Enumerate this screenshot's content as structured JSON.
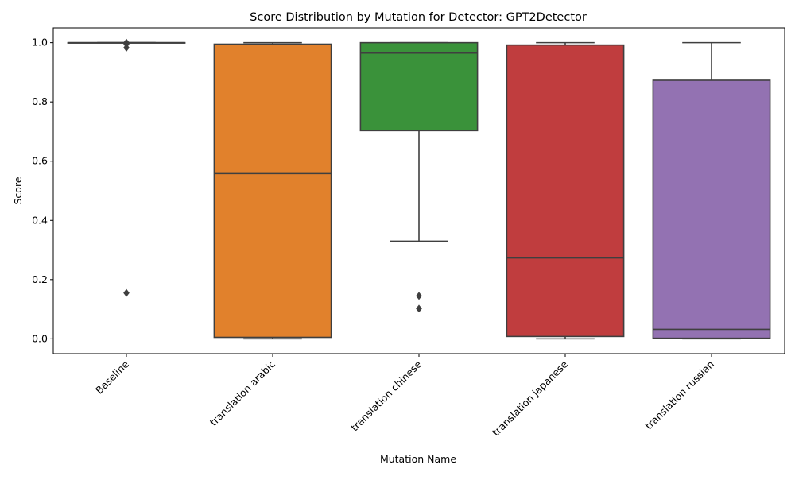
{
  "chart_data": {
    "type": "box",
    "title": "Score Distribution by Mutation for Detector: GPT2Detector",
    "xlabel": "Mutation Name",
    "ylabel": "Score",
    "ylim": [
      -0.05,
      1.05
    ],
    "yticks": [
      0.0,
      0.2,
      0.4,
      0.6,
      0.8,
      1.0
    ],
    "ytick_labels": [
      "0.0",
      "0.2",
      "0.4",
      "0.6",
      "0.8",
      "1.0"
    ],
    "grid": false,
    "legend": "none",
    "categories": [
      "Baseline",
      "translation arabic",
      "translation chinese",
      "translation japanese",
      "translation russian"
    ],
    "boxes": [
      {
        "category": "Baseline",
        "color": "#3a75af",
        "whisker_low": 1.0,
        "q1": 1.0,
        "median": 1.0,
        "q3": 1.0,
        "whisker_high": 1.0,
        "outliers": [
          1.0,
          0.995,
          0.983,
          0.155
        ]
      },
      {
        "category": "translation arabic",
        "color": "#e1812c",
        "whisker_low": 0.0,
        "q1": 0.005,
        "median": 0.558,
        "q3": 0.995,
        "whisker_high": 1.0,
        "outliers": []
      },
      {
        "category": "translation chinese",
        "color": "#3a923a",
        "whisker_low": 0.33,
        "q1": 0.703,
        "median": 0.965,
        "q3": 1.0,
        "whisker_high": 1.0,
        "outliers": [
          0.145,
          0.102
        ]
      },
      {
        "category": "translation japanese",
        "color": "#c03d3e",
        "whisker_low": 0.0,
        "q1": 0.008,
        "median": 0.273,
        "q3": 0.992,
        "whisker_high": 1.0,
        "outliers": []
      },
      {
        "category": "translation russian",
        "color": "#9372b2",
        "whisker_low": 0.0,
        "q1": 0.002,
        "median": 0.032,
        "q3": 0.873,
        "whisker_high": 1.0,
        "outliers": []
      }
    ]
  }
}
